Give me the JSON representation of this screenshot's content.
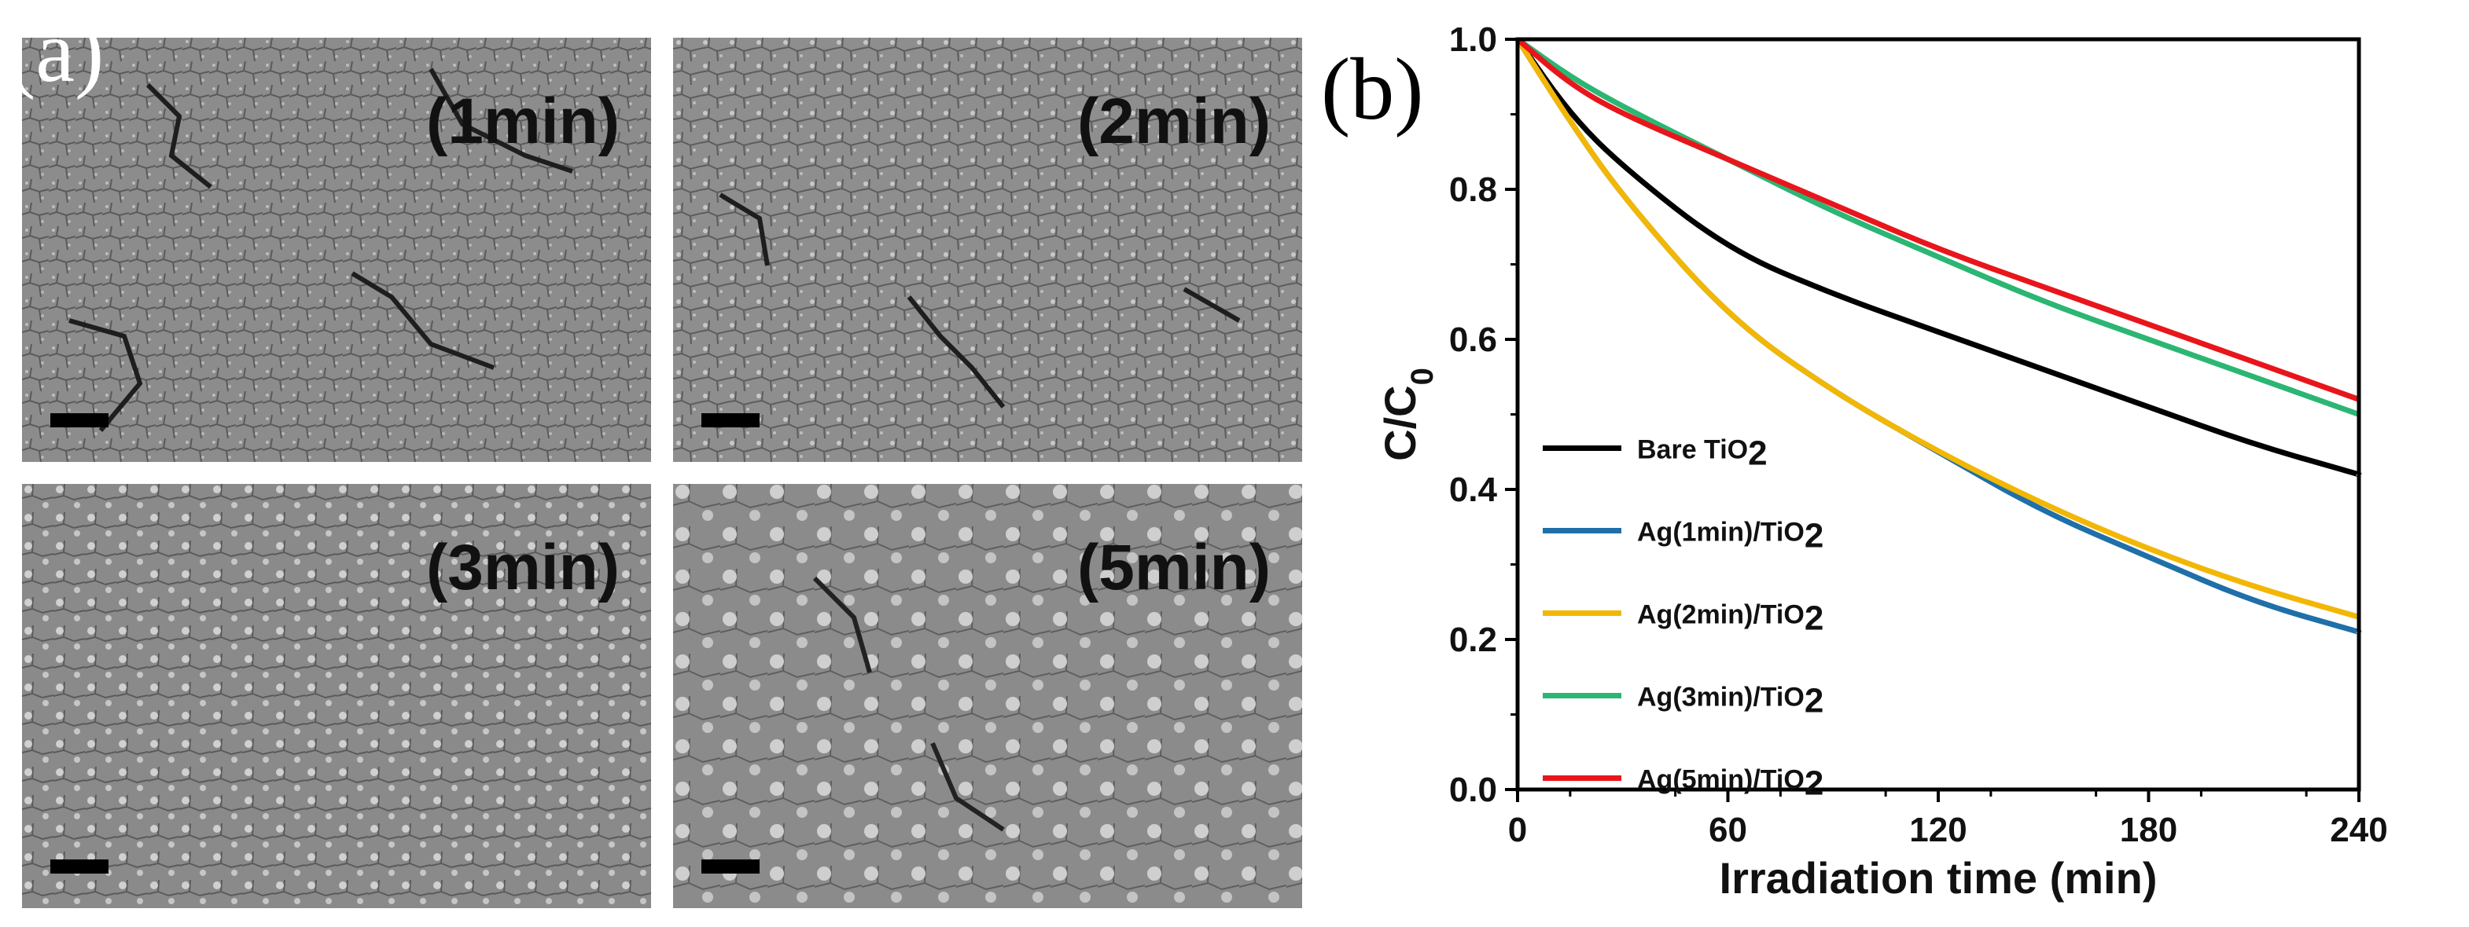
{
  "panel_a": {
    "letter": "(a)",
    "images": [
      {
        "label": "(1min)"
      },
      {
        "label": "(2min)"
      },
      {
        "label": "(3min)"
      },
      {
        "label": "(5min)"
      }
    ]
  },
  "panel_b": {
    "letter": "(b)"
  },
  "chart_data": {
    "type": "line",
    "title": "",
    "xlabel": "Irradiation time (min)",
    "ylabel": "C/C0",
    "xlim": [
      0,
      240
    ],
    "ylim": [
      0.0,
      1.0
    ],
    "xticks": [
      0,
      60,
      120,
      180,
      240
    ],
    "yticks": [
      "0.0",
      "0.2",
      "0.4",
      "0.6",
      "0.8",
      "1.0"
    ],
    "x": [
      0,
      15,
      30,
      60,
      90,
      120,
      150,
      180,
      210,
      240
    ],
    "series": [
      {
        "name": "Bare TiO2",
        "color": "#000000",
        "values": [
          1.0,
          0.9,
          0.83,
          0.72,
          0.66,
          0.61,
          0.56,
          0.51,
          0.46,
          0.42
        ]
      },
      {
        "name": "Ag(1min)/TiO2",
        "color": "#1f6fa8",
        "values": [
          1.0,
          0.89,
          0.79,
          0.63,
          0.53,
          0.45,
          0.37,
          0.31,
          0.25,
          0.21
        ]
      },
      {
        "name": "Ag(2min)/TiO2",
        "color": "#f2b705",
        "values": [
          1.0,
          0.89,
          0.79,
          0.63,
          0.53,
          0.45,
          0.38,
          0.32,
          0.27,
          0.23
        ]
      },
      {
        "name": "Ag(3min)/TiO2",
        "color": "#2bb673",
        "values": [
          1.0,
          0.95,
          0.91,
          0.84,
          0.77,
          0.71,
          0.65,
          0.6,
          0.55,
          0.5
        ]
      },
      {
        "name": "Ag(5min)/TiO2",
        "color": "#e8161c",
        "values": [
          1.0,
          0.94,
          0.9,
          0.84,
          0.78,
          0.72,
          0.67,
          0.62,
          0.57,
          0.52
        ]
      }
    ],
    "legend": {
      "position": "lower-left",
      "entries": [
        {
          "prefix": "Bare TiO",
          "sub": "2"
        },
        {
          "prefix": "Ag(1min)/TiO",
          "sub": "2"
        },
        {
          "prefix": "Ag(2min)/TiO",
          "sub": "2"
        },
        {
          "prefix": "Ag(3min)/TiO",
          "sub": "2"
        },
        {
          "prefix": "Ag(5min)/TiO",
          "sub": "2"
        }
      ]
    },
    "grid": false
  }
}
